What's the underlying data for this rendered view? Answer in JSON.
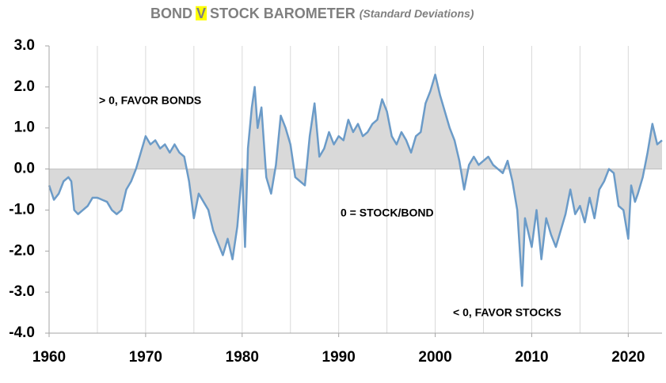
{
  "chart_data": {
    "type": "line",
    "title": {
      "before": "BOND",
      "highlight": "V",
      "after": "STOCK BAROMETER"
    },
    "subtitle": "(Standard Deviations)",
    "annotations": [
      "> 0, FAVOR BONDS",
      "0 = STOCK/BOND",
      "< 0, FAVOR STOCKS"
    ],
    "x": [
      1960,
      1960.5,
      1961,
      1961.5,
      1962,
      1962.3,
      1962.6,
      1963,
      1963.5,
      1964,
      1964.5,
      1965,
      1965.5,
      1966,
      1966.5,
      1967,
      1967.5,
      1968,
      1968.5,
      1969,
      1969.5,
      1970,
      1970.5,
      1971,
      1971.5,
      1972,
      1972.5,
      1973,
      1973.5,
      1974,
      1974.5,
      1975,
      1975.5,
      1976,
      1976.5,
      1977,
      1977.5,
      1978,
      1978.5,
      1979,
      1979.5,
      1980,
      1980.3,
      1980.6,
      1981,
      1981.3,
      1981.6,
      1982,
      1982.5,
      1983,
      1983.5,
      1984,
      1984.5,
      1985,
      1985.5,
      1986,
      1986.5,
      1987,
      1987.5,
      1988,
      1988.5,
      1989,
      1989.5,
      1990,
      1990.5,
      1991,
      1991.5,
      1992,
      1992.5,
      1993,
      1993.5,
      1994,
      1994.5,
      1995,
      1995.5,
      1996,
      1996.5,
      1997,
      1997.5,
      1998,
      1998.5,
      1999,
      1999.5,
      2000,
      2000.5,
      2001,
      2001.5,
      2002,
      2002.5,
      2003,
      2003.5,
      2004,
      2004.5,
      2005,
      2005.5,
      2006,
      2006.5,
      2007,
      2007.5,
      2008,
      2008.5,
      2009,
      2009.3,
      2009.7,
      2010,
      2010.5,
      2011,
      2011.5,
      2012,
      2012.5,
      2013,
      2013.5,
      2014,
      2014.5,
      2015,
      2015.5,
      2016,
      2016.5,
      2017,
      2017.5,
      2018,
      2018.5,
      2019,
      2019.5,
      2020,
      2020.3,
      2020.7,
      2021,
      2021.5,
      2022,
      2022.5,
      2023,
      2023.5
    ],
    "series": [
      {
        "name": "Bond v Stock Barometer",
        "color": "#6b9bc8",
        "values": [
          -0.4,
          -0.75,
          -0.6,
          -0.3,
          -0.2,
          -0.3,
          -1.0,
          -1.1,
          -1.0,
          -0.9,
          -0.7,
          -0.7,
          -0.75,
          -0.8,
          -1.0,
          -1.1,
          -1.0,
          -0.5,
          -0.3,
          0.0,
          0.4,
          0.8,
          0.6,
          0.7,
          0.5,
          0.6,
          0.4,
          0.6,
          0.4,
          0.3,
          -0.3,
          -1.2,
          -0.6,
          -0.8,
          -1.0,
          -1.5,
          -1.8,
          -2.1,
          -1.7,
          -2.2,
          -1.4,
          0.0,
          -1.9,
          0.5,
          1.5,
          2.0,
          1.0,
          1.5,
          -0.2,
          -0.6,
          0.1,
          1.3,
          1.0,
          0.6,
          -0.2,
          -0.3,
          -0.4,
          0.8,
          1.6,
          0.3,
          0.5,
          0.9,
          0.6,
          0.8,
          0.7,
          1.2,
          0.9,
          1.1,
          0.8,
          0.9,
          1.1,
          1.2,
          1.7,
          1.4,
          0.8,
          0.6,
          0.9,
          0.7,
          0.4,
          0.8,
          0.9,
          1.6,
          1.9,
          2.3,
          1.8,
          1.4,
          1.0,
          0.7,
          0.2,
          -0.5,
          0.1,
          0.3,
          0.1,
          0.2,
          0.3,
          0.1,
          0.0,
          -0.1,
          0.2,
          -0.3,
          -1.0,
          -2.85,
          -1.2,
          -1.6,
          -1.9,
          -1.0,
          -2.2,
          -1.2,
          -1.6,
          -1.9,
          -1.5,
          -1.1,
          -0.5,
          -1.1,
          -0.9,
          -1.3,
          -0.7,
          -1.2,
          -0.5,
          -0.3,
          0.0,
          -0.1,
          -0.9,
          -1.0,
          -1.7,
          -0.4,
          -0.8,
          -0.6,
          -0.2,
          0.4,
          1.1,
          0.6,
          0.7
        ]
      }
    ],
    "area_color": "#d9d9d9",
    "xlim": [
      1960,
      2023.5
    ],
    "xticks": [
      1960,
      1970,
      1980,
      1990,
      2000,
      2010,
      2020
    ],
    "xgrid": [
      1965,
      1970,
      1975,
      1980,
      1985,
      1990,
      1995,
      2000,
      2005,
      2010,
      2015,
      2020
    ],
    "ylim": [
      -4,
      3
    ],
    "yticks": [
      {
        "value": -4,
        "label": "-4.0"
      },
      {
        "value": -3,
        "label": "-3.0"
      },
      {
        "value": -2,
        "label": "-2.0"
      },
      {
        "value": -1,
        "label": "-1.0"
      },
      {
        "value": 0,
        "label": "0.0"
      },
      {
        "value": 1,
        "label": "1.0"
      },
      {
        "value": 2,
        "label": "2.0"
      },
      {
        "value": 3,
        "label": "3.0"
      }
    ]
  }
}
